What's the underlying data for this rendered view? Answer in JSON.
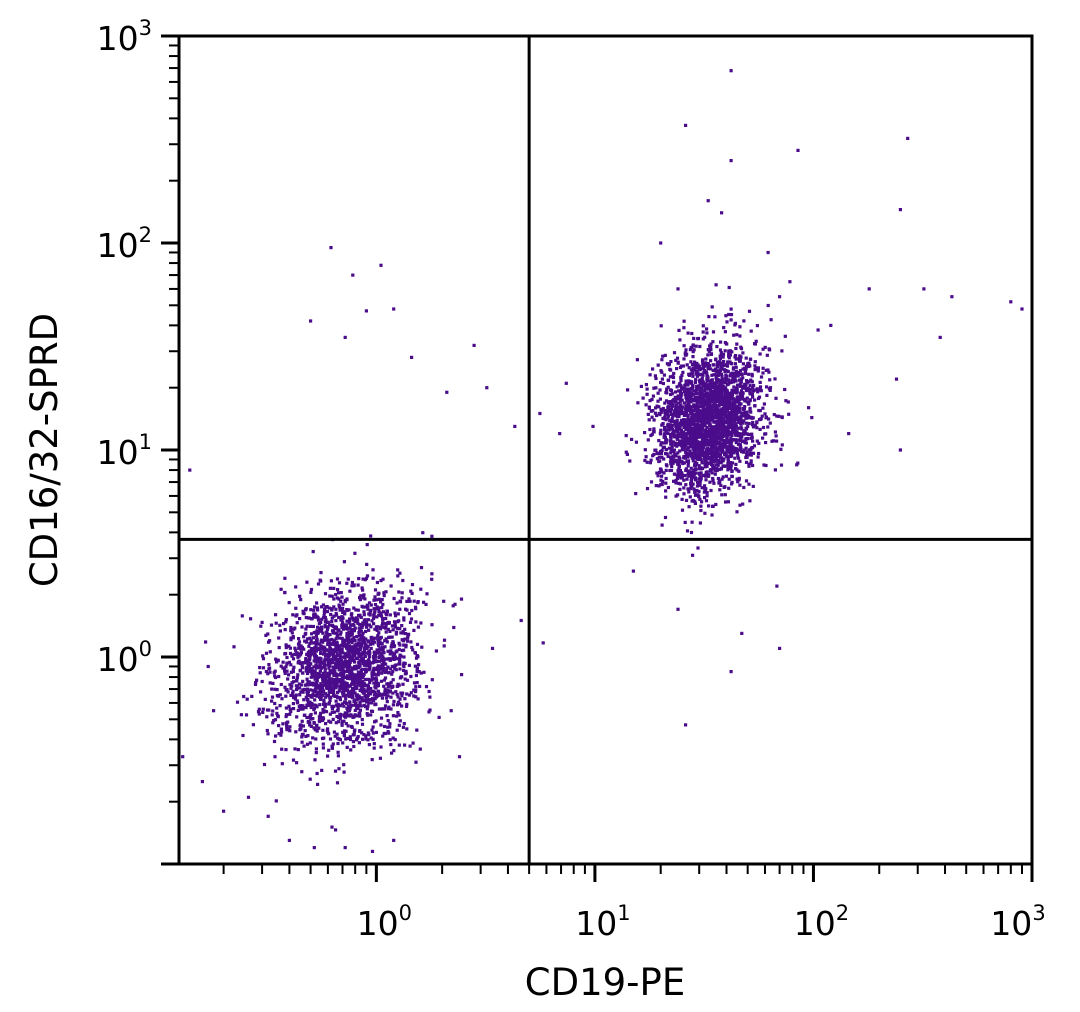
{
  "chart_data": {
    "type": "scatter",
    "title": "",
    "xlabel": "CD19-PE",
    "ylabel": "CD16/32-SPRD",
    "x_scale": "log",
    "y_scale": "log",
    "xlim": [
      0.125,
      1000
    ],
    "ylim": [
      0.1,
      1000
    ],
    "grid": false,
    "point_color": "#4b0c8c",
    "quadrant_gate": {
      "x": 5.0,
      "y": 3.7
    },
    "x_ticks": [
      {
        "value": 1,
        "base": "10",
        "exp": "0"
      },
      {
        "value": 10,
        "base": "10",
        "exp": "1"
      },
      {
        "value": 100,
        "base": "10",
        "exp": "2"
      },
      {
        "value": 1000,
        "base": "10",
        "exp": "3"
      }
    ],
    "y_ticks": [
      {
        "value": 1,
        "base": "10",
        "exp": "0"
      },
      {
        "value": 10,
        "base": "10",
        "exp": "1"
      },
      {
        "value": 100,
        "base": "10",
        "exp": "2"
      },
      {
        "value": 1000,
        "base": "10",
        "exp": "3"
      }
    ],
    "populations": [
      {
        "center_x": 0.72,
        "center_y": 0.9,
        "count": 2200,
        "spread_x_log10": 0.16,
        "spread_y_log10": 0.19
      },
      {
        "center_x": 33,
        "center_y": 14,
        "count": 2600,
        "spread_x_log10": 0.12,
        "spread_y_log10": 0.17
      }
    ],
    "outliers": [
      [
        42,
        680
      ],
      [
        26,
        370
      ],
      [
        42,
        250
      ],
      [
        85,
        280
      ],
      [
        270,
        320
      ],
      [
        250,
        145
      ],
      [
        20,
        100
      ],
      [
        24,
        60
      ],
      [
        70,
        55
      ],
      [
        62,
        90
      ],
      [
        78,
        65
      ],
      [
        33,
        160
      ],
      [
        38,
        140
      ],
      [
        180,
        60
      ],
      [
        320,
        60
      ],
      [
        430,
        55
      ],
      [
        800,
        52
      ],
      [
        900,
        48
      ],
      [
        380,
        35
      ],
      [
        120,
        40
      ],
      [
        105,
        38
      ],
      [
        240,
        22
      ],
      [
        145,
        12
      ],
      [
        250,
        10
      ],
      [
        95,
        16
      ],
      [
        0.62,
        95
      ],
      [
        0.78,
        70
      ],
      [
        1.05,
        78
      ],
      [
        1.2,
        48
      ],
      [
        0.9,
        47
      ],
      [
        0.5,
        42
      ],
      [
        0.72,
        35
      ],
      [
        1.45,
        28
      ],
      [
        2.8,
        32
      ],
      [
        3.2,
        20
      ],
      [
        4.3,
        13
      ],
      [
        2.1,
        19
      ],
      [
        7.4,
        21
      ],
      [
        9.8,
        13
      ],
      [
        5.6,
        15
      ],
      [
        6.9,
        12
      ],
      [
        15,
        2.6
      ],
      [
        24,
        1.7
      ],
      [
        28,
        3.1
      ],
      [
        47,
        1.3
      ],
      [
        70,
        1.1
      ],
      [
        68,
        2.2
      ],
      [
        42,
        0.85
      ],
      [
        26,
        0.47
      ],
      [
        5.8,
        1.17
      ],
      [
        0.14,
        8
      ],
      [
        0.12,
        1.2
      ],
      [
        0.13,
        0.33
      ],
      [
        0.2,
        0.18
      ],
      [
        0.26,
        0.21
      ],
      [
        0.32,
        0.17
      ],
      [
        0.4,
        0.13
      ],
      [
        0.52,
        0.12
      ],
      [
        0.72,
        0.12
      ],
      [
        0.96,
        0.115
      ],
      [
        1.2,
        0.13
      ],
      [
        2.4,
        0.33
      ],
      [
        3.4,
        1.1
      ],
      [
        4.6,
        1.5
      ],
      [
        2.2,
        0.55
      ],
      [
        0.18,
        0.55
      ],
      [
        0.16,
        0.25
      ],
      [
        0.17,
        0.9
      ]
    ]
  }
}
